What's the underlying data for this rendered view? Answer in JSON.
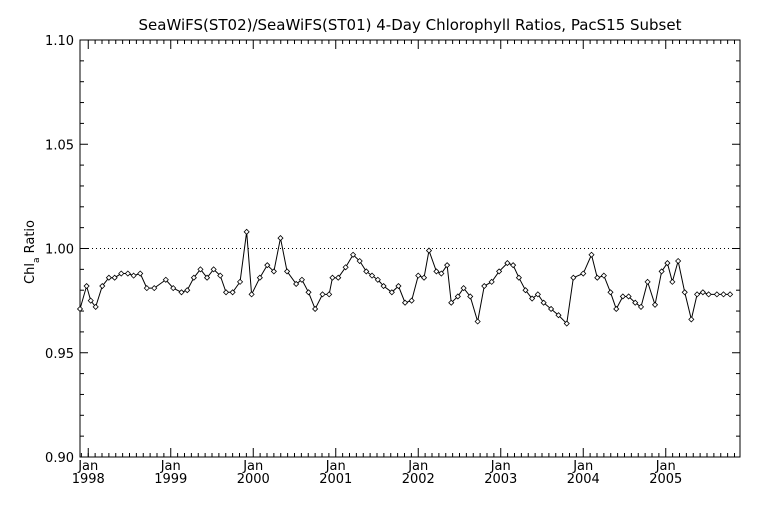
{
  "chart_data": {
    "type": "line",
    "title": "SeaWiFS(ST02)/SeaWiFS(ST01) 4-Day Chlorophyll Ratios, PacS15 Subset",
    "ylabel": "Chl",
    "ylabel_sub": "a",
    "ylabel_rest": " Ratio",
    "ylim": [
      0.9,
      1.1
    ],
    "yticks": [
      "0.90",
      "0.95",
      "1.00",
      "1.05",
      "1.10"
    ],
    "xlim": [
      1997.9,
      2005.9
    ],
    "xtick_top": [
      "Jan",
      "Jan",
      "Jan",
      "Jan",
      "Jan",
      "Jan",
      "Jan",
      "Jan"
    ],
    "xtick_years": [
      "1998",
      "1999",
      "2000",
      "2001",
      "2002",
      "2003",
      "2004",
      "2005"
    ],
    "reference_line": 1.0,
    "grid": false,
    "series": [
      {
        "marker": "diamond",
        "x": [
          1997.9,
          1997.98,
          1998.03,
          1998.09,
          1998.17,
          1998.25,
          1998.32,
          1998.4,
          1998.48,
          1998.55,
          1998.63,
          1998.71,
          1998.8,
          1998.94,
          1999.03,
          1999.13,
          1999.2,
          1999.28,
          1999.36,
          1999.44,
          1999.52,
          1999.6,
          1999.67,
          1999.75,
          1999.84,
          1999.92,
          1999.98,
          2000.08,
          2000.17,
          2000.25,
          2000.33,
          2000.41,
          2000.52,
          2000.59,
          2000.67,
          2000.75,
          2000.84,
          2000.92,
          2000.96,
          2001.03,
          2001.12,
          2001.21,
          2001.29,
          2001.37,
          2001.44,
          2001.51,
          2001.58,
          2001.68,
          2001.76,
          2001.84,
          2001.92,
          2002.0,
          2002.07,
          2002.13,
          2002.22,
          2002.28,
          2002.35,
          2002.4,
          2002.48,
          2002.55,
          2002.63,
          2002.72,
          2002.8,
          2002.89,
          2002.98,
          2003.08,
          2003.15,
          2003.22,
          2003.3,
          2003.38,
          2003.45,
          2003.52,
          2003.61,
          2003.7,
          2003.8,
          2003.88,
          2004.0,
          2004.1,
          2004.17,
          2004.25,
          2004.33,
          2004.4,
          2004.48,
          2004.55,
          2004.63,
          2004.7,
          2004.78,
          2004.87,
          2004.95,
          2005.02,
          2005.08,
          2005.15,
          2005.23,
          2005.31,
          2005.38,
          2005.45,
          2005.52,
          2005.62,
          2005.7,
          2005.78
        ],
        "y": [
          0.971,
          0.982,
          0.975,
          0.972,
          0.982,
          0.986,
          0.986,
          0.988,
          0.988,
          0.987,
          0.988,
          0.981,
          0.981,
          0.985,
          0.981,
          0.979,
          0.98,
          0.986,
          0.99,
          0.986,
          0.99,
          0.987,
          0.979,
          0.979,
          0.984,
          1.008,
          0.978,
          0.986,
          0.992,
          0.989,
          1.005,
          0.989,
          0.983,
          0.985,
          0.979,
          0.971,
          0.978,
          0.978,
          0.986,
          0.986,
          0.991,
          0.997,
          0.994,
          0.989,
          0.987,
          0.985,
          0.982,
          0.979,
          0.982,
          0.974,
          0.975,
          0.987,
          0.986,
          0.999,
          0.989,
          0.988,
          0.992,
          0.974,
          0.977,
          0.981,
          0.977,
          0.965,
          0.982,
          0.984,
          0.989,
          0.993,
          0.992,
          0.986,
          0.98,
          0.976,
          0.978,
          0.974,
          0.971,
          0.968,
          0.964,
          0.986,
          0.988,
          0.997,
          0.986,
          0.987,
          0.979,
          0.971,
          0.977,
          0.977,
          0.974,
          0.972,
          0.984,
          0.973,
          0.989,
          0.993,
          0.984,
          0.994,
          0.979,
          0.966,
          0.978,
          0.979,
          0.978,
          0.978,
          0.978,
          0.978
        ]
      }
    ]
  }
}
